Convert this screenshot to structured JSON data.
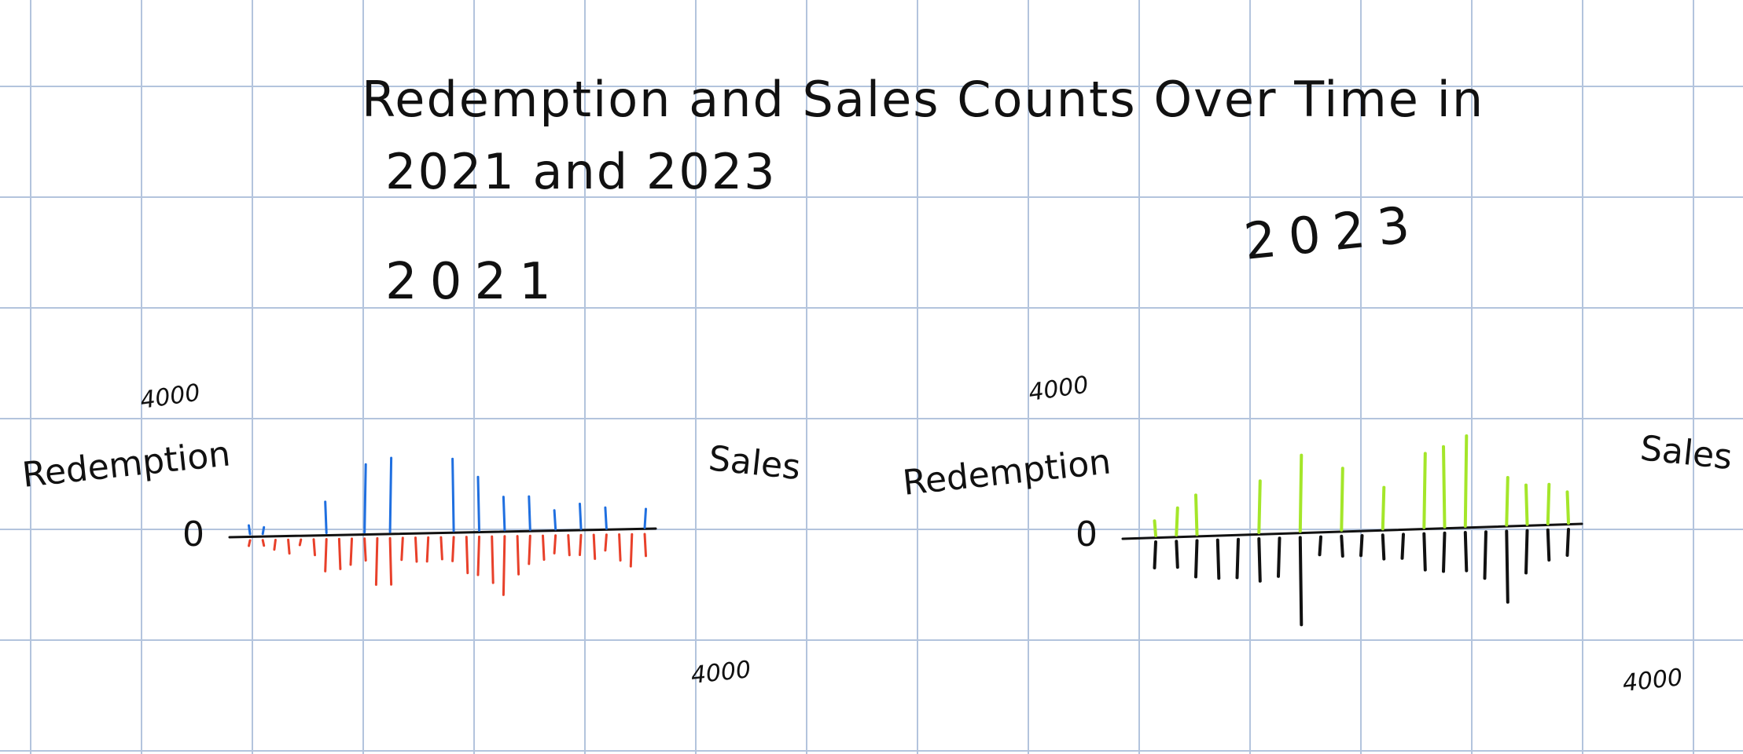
{
  "title_line1": "Redemption and Sales Counts Over Time in",
  "title_line2": "2021 and 2023",
  "colors": {
    "grid": "#b3c4dd",
    "redemption_2021": "#1f6fe0",
    "sales_2021": "#e8402a",
    "redemption_2023": "#a4e62a",
    "sales_2023": "#111111",
    "axis": "#111111"
  },
  "chart_data": [
    {
      "type": "bar",
      "title": "2021",
      "orientation": "diverging",
      "upper_label": "Redemption",
      "lower_label": "Sales",
      "upper_tick": "4000",
      "lower_tick": "4000",
      "zero_label": "0",
      "ylim": [
        -4000,
        4000
      ],
      "series": [
        {
          "name": "Redemption",
          "values": [
            250,
            200,
            0,
            0,
            0,
            0,
            800,
            0,
            0,
            1700,
            0,
            1850,
            0,
            0,
            0,
            0,
            1800,
            0,
            1350,
            0,
            850,
            0,
            850,
            0,
            500,
            0,
            650,
            0,
            550,
            0,
            0,
            500
          ]
        },
        {
          "name": "Sales",
          "values": [
            -250,
            -250,
            -350,
            -450,
            -250,
            -500,
            -900,
            -850,
            -750,
            -650,
            -1250,
            -1250,
            -650,
            -700,
            -700,
            -650,
            -700,
            -1000,
            -1050,
            -1250,
            -1550,
            -1050,
            -800,
            -700,
            -550,
            -600,
            -600,
            -700,
            -500,
            -750,
            -900,
            -650
          ]
        }
      ]
    },
    {
      "type": "bar",
      "title": "2023",
      "orientation": "diverging",
      "upper_label": "Redemption",
      "lower_label": "Sales",
      "upper_tick": "4000",
      "lower_tick": "4000",
      "zero_label": "0",
      "ylim": [
        -4000,
        4000
      ],
      "series": [
        {
          "name": "Redemption",
          "values": [
            400,
            700,
            1000,
            0,
            0,
            1300,
            0,
            1900,
            0,
            1550,
            0,
            1050,
            0,
            1850,
            2000,
            2250,
            0,
            1200,
            1000,
            1000,
            800
          ]
        },
        {
          "name": "Sales",
          "values": [
            -750,
            -750,
            -1000,
            -1050,
            -1050,
            -1150,
            -1050,
            -2250,
            -550,
            -600,
            -600,
            -700,
            -700,
            -1000,
            -1050,
            -1050,
            -1250,
            -1850,
            -1150,
            -850,
            -750
          ]
        }
      ]
    }
  ]
}
